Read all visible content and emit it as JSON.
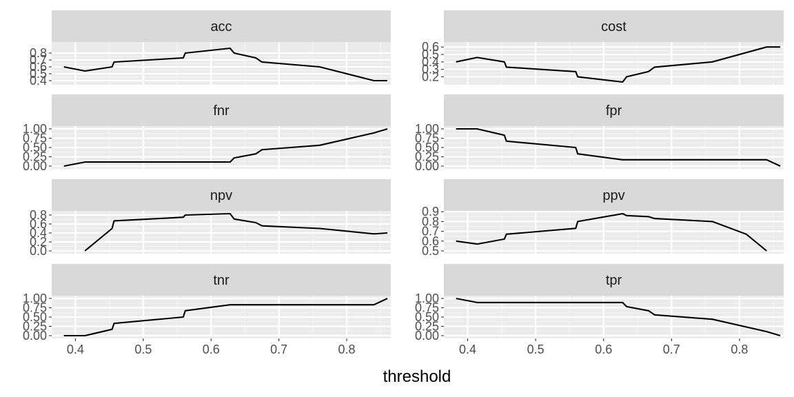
{
  "figure": {
    "xlabel": "threshold"
  },
  "colors": {
    "panel_background": "#ebebeb",
    "strip_background": "#d9d9d9",
    "grid_major": "#ffffff",
    "grid_minor": "#f5f5f5",
    "line": "#000000",
    "tick_text": "#4d4d4d"
  },
  "chart_data": {
    "type": "line",
    "layout": "facet_wrap, 4 rows x 2 columns, shared x axis",
    "xlim": [
      0.365,
      0.865
    ],
    "x_ticks": [
      "0.4",
      "0.5",
      "0.6",
      "0.7",
      "0.8"
    ],
    "x_tick_values": [
      0.4,
      0.5,
      0.6,
      0.7,
      0.8
    ],
    "panels": [
      {
        "title": "acc",
        "ylim": [
          0.38,
          0.92
        ],
        "y_ticks": [
          "0.4",
          "0.5",
          "0.6",
          "0.7",
          "0.8"
        ],
        "y_tick_values": [
          0.4,
          0.5,
          0.6,
          0.7,
          0.8
        ],
        "x": [
          0.383,
          0.414,
          0.454,
          0.457,
          0.559,
          0.562,
          0.628,
          0.634,
          0.666,
          0.675,
          0.76,
          0.84,
          0.86
        ],
        "y": [
          0.6,
          0.54,
          0.6,
          0.67,
          0.73,
          0.8,
          0.87,
          0.8,
          0.73,
          0.67,
          0.6,
          0.4,
          0.4
        ]
      },
      {
        "title": "cost",
        "ylim": [
          0.13,
          0.63
        ],
        "y_ticks": [
          "0.2",
          "0.3",
          "0.4",
          "0.5",
          "0.6"
        ],
        "y_tick_values": [
          0.2,
          0.3,
          0.4,
          0.5,
          0.6
        ],
        "x": [
          0.383,
          0.414,
          0.454,
          0.457,
          0.559,
          0.562,
          0.628,
          0.634,
          0.666,
          0.675,
          0.76,
          0.84,
          0.86
        ],
        "y": [
          0.4,
          0.46,
          0.4,
          0.33,
          0.27,
          0.2,
          0.13,
          0.2,
          0.27,
          0.33,
          0.4,
          0.6,
          0.6
        ]
      },
      {
        "title": "fnr",
        "ylim": [
          0,
          1
        ],
        "y_ticks": [
          "0.00",
          "0.25",
          "0.50",
          "0.75",
          "1.00"
        ],
        "y_tick_values": [
          0,
          0.25,
          0.5,
          0.75,
          1
        ],
        "x": [
          0.383,
          0.414,
          0.454,
          0.457,
          0.559,
          0.562,
          0.628,
          0.634,
          0.666,
          0.675,
          0.76,
          0.84,
          0.86
        ],
        "y": [
          0,
          0.11,
          0.11,
          0.11,
          0.11,
          0.11,
          0.11,
          0.22,
          0.33,
          0.44,
          0.56,
          0.89,
          1.0
        ]
      },
      {
        "title": "fpr",
        "ylim": [
          0,
          1
        ],
        "y_ticks": [
          "0.00",
          "0.25",
          "0.50",
          "0.75",
          "1.00"
        ],
        "y_tick_values": [
          0,
          0.25,
          0.5,
          0.75,
          1
        ],
        "x": [
          0.383,
          0.414,
          0.454,
          0.457,
          0.559,
          0.562,
          0.628,
          0.634,
          0.666,
          0.675,
          0.76,
          0.84,
          0.86
        ],
        "y": [
          1.0,
          1.0,
          0.83,
          0.67,
          0.5,
          0.33,
          0.17,
          0.17,
          0.17,
          0.17,
          0.17,
          0.17,
          0.0
        ]
      },
      {
        "title": "npv",
        "ylim": [
          0,
          0.83
        ],
        "y_ticks": [
          "0.0",
          "0.2",
          "0.4",
          "0.6",
          "0.8"
        ],
        "y_tick_values": [
          0,
          0.2,
          0.4,
          0.6,
          0.8
        ],
        "x": [
          0.414,
          0.454,
          0.457,
          0.559,
          0.562,
          0.628,
          0.634,
          0.666,
          0.675,
          0.76,
          0.84,
          0.86
        ],
        "y": [
          0.0,
          0.5,
          0.67,
          0.75,
          0.8,
          0.83,
          0.71,
          0.63,
          0.56,
          0.5,
          0.38,
          0.4
        ]
      },
      {
        "title": "ppv",
        "ylim": [
          0.5,
          0.88
        ],
        "y_ticks": [
          "0.5",
          "0.6",
          "0.7",
          "0.8",
          "0.9"
        ],
        "y_tick_values": [
          0.5,
          0.6,
          0.7,
          0.8,
          0.9
        ],
        "x": [
          0.383,
          0.414,
          0.454,
          0.457,
          0.559,
          0.562,
          0.628,
          0.634,
          0.666,
          0.675,
          0.76,
          0.81,
          0.84
        ],
        "y": [
          0.6,
          0.57,
          0.62,
          0.67,
          0.73,
          0.8,
          0.88,
          0.86,
          0.85,
          0.83,
          0.8,
          0.67,
          0.5
        ]
      },
      {
        "title": "tnr",
        "ylim": [
          0,
          1
        ],
        "y_ticks": [
          "0.00",
          "0.25",
          "0.50",
          "0.75",
          "1.00"
        ],
        "y_tick_values": [
          0,
          0.25,
          0.5,
          0.75,
          1
        ],
        "x": [
          0.383,
          0.414,
          0.454,
          0.457,
          0.559,
          0.562,
          0.628,
          0.634,
          0.666,
          0.675,
          0.76,
          0.84,
          0.86
        ],
        "y": [
          0.0,
          0.0,
          0.17,
          0.33,
          0.5,
          0.67,
          0.83,
          0.83,
          0.83,
          0.83,
          0.83,
          0.83,
          1.0
        ]
      },
      {
        "title": "tpr",
        "ylim": [
          0,
          1
        ],
        "y_ticks": [
          "0.00",
          "0.25",
          "0.50",
          "0.75",
          "1.00"
        ],
        "y_tick_values": [
          0,
          0.25,
          0.5,
          0.75,
          1
        ],
        "x": [
          0.383,
          0.414,
          0.454,
          0.457,
          0.559,
          0.562,
          0.628,
          0.634,
          0.666,
          0.675,
          0.76,
          0.84,
          0.86
        ],
        "y": [
          1.0,
          0.89,
          0.89,
          0.89,
          0.89,
          0.89,
          0.89,
          0.78,
          0.67,
          0.56,
          0.44,
          0.11,
          0.0
        ]
      }
    ]
  }
}
